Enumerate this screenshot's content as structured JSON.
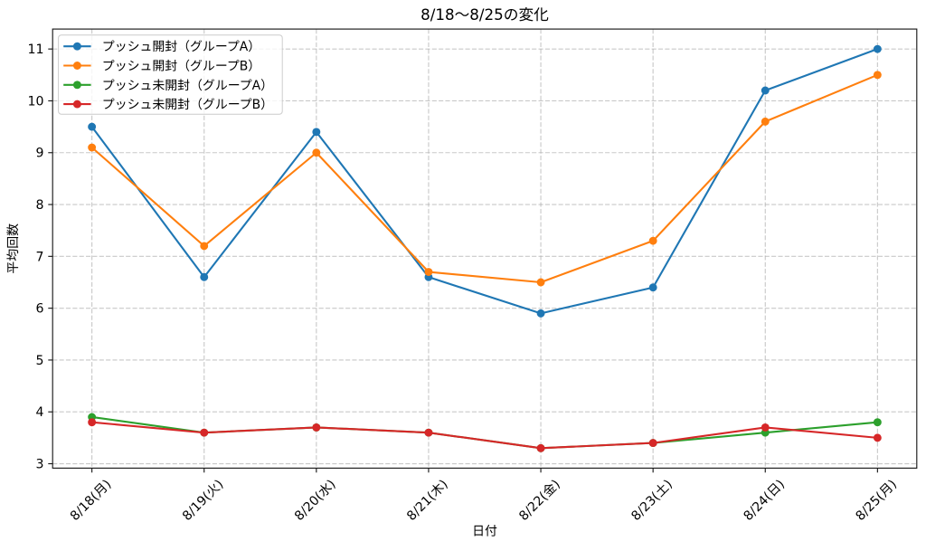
{
  "chart_data": {
    "type": "line",
    "title": "8/18～8/25の変化",
    "xlabel": "日付",
    "ylabel": "平均回数",
    "categories": [
      "8/18(月)",
      "8/19(火)",
      "8/20(水)",
      "8/21(木)",
      "8/22(金)",
      "8/23(土)",
      "8/24(日)",
      "8/25(月)"
    ],
    "series": [
      {
        "name": "プッシュ開封（グループA）",
        "color": "#1f77b4",
        "values": [
          9.5,
          6.6,
          9.4,
          6.6,
          5.9,
          6.4,
          10.2,
          11.0
        ]
      },
      {
        "name": "プッシュ開封（グループB）",
        "color": "#ff7f0e",
        "values": [
          9.1,
          7.2,
          9.0,
          6.7,
          6.5,
          7.3,
          9.6,
          10.5
        ]
      },
      {
        "name": "プッシュ未開封（グループA）",
        "color": "#2ca02c",
        "values": [
          3.9,
          3.6,
          3.7,
          3.6,
          3.3,
          3.4,
          3.6,
          3.8
        ]
      },
      {
        "name": "プッシュ未開封（グループB）",
        "color": "#d62728",
        "values": [
          3.8,
          3.6,
          3.7,
          3.6,
          3.3,
          3.4,
          3.7,
          3.5
        ]
      }
    ],
    "yticks": [
      3,
      4,
      5,
      6,
      7,
      8,
      9,
      10,
      11
    ],
    "ylim": [
      2.915,
      11.385
    ],
    "xlim": [
      -0.35,
      7.35
    ],
    "grid": {
      "visible": true,
      "style": "dashed",
      "color": "#b0b0b0",
      "opacity": 0.7
    },
    "legend": {
      "position": "upper-left",
      "border_color": "#cccccc",
      "background": "#ffffff"
    },
    "marker": "circle",
    "background": "#ffffff"
  }
}
